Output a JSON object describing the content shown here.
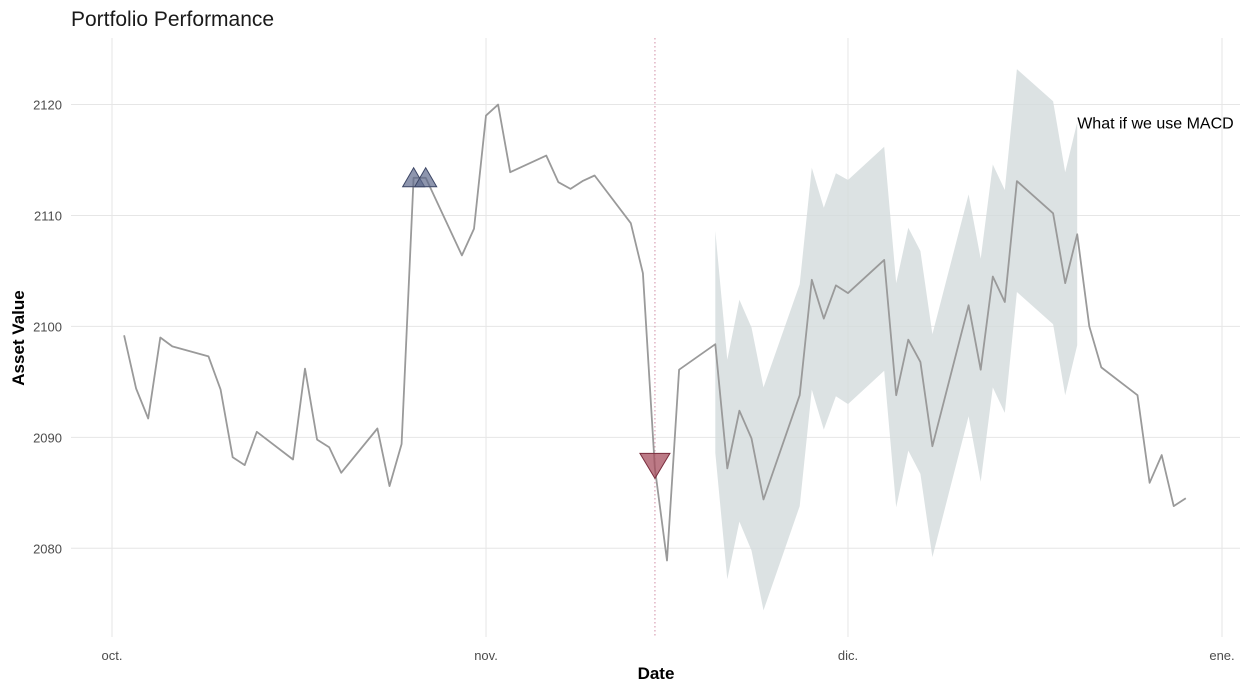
{
  "chart_data": {
    "type": "line",
    "title": "Portfolio Performance",
    "xlabel": "Date",
    "ylabel": "Asset Value",
    "ylim": [
      2072,
      2126
    ],
    "xlim": [
      "2023-10-01",
      "2024-01-01"
    ],
    "x_ticks": [
      {
        "date": "2023-10-01",
        "label": "oct."
      },
      {
        "date": "2023-11-01",
        "label": "nov."
      },
      {
        "date": "2023-12-01",
        "label": "dic."
      },
      {
        "date": "2024-01-01",
        "label": "ene."
      }
    ],
    "y_ticks": [
      2080,
      2090,
      2100,
      2110,
      2120
    ],
    "grid": true,
    "legend": "none",
    "colors": {
      "line": "#9a9a9a",
      "band": "#d3dbdc",
      "buy_marker": "#5e6a8c",
      "sell_marker": "#a54d5e",
      "vline": "#d9a0b4"
    },
    "series": [
      {
        "x": [
          "2023-10-02",
          "2023-10-03",
          "2023-10-04",
          "2023-10-05",
          "2023-10-06",
          "2023-10-09",
          "2023-10-10",
          "2023-10-11",
          "2023-10-12",
          "2023-10-13",
          "2023-10-16",
          "2023-10-17",
          "2023-10-18",
          "2023-10-19",
          "2023-10-20",
          "2023-10-23",
          "2023-10-24",
          "2023-10-25",
          "2023-10-26",
          "2023-10-27",
          "2023-10-30",
          "2023-10-31",
          "2023-11-01",
          "2023-11-02",
          "2023-11-03",
          "2023-11-06",
          "2023-11-07",
          "2023-11-08",
          "2023-11-09",
          "2023-11-10",
          "2023-11-13",
          "2023-11-14",
          "2023-11-15",
          "2023-11-16",
          "2023-11-17",
          "2023-11-20",
          "2023-11-21",
          "2023-11-22",
          "2023-11-23",
          "2023-11-24",
          "2023-11-27",
          "2023-11-28",
          "2023-11-29",
          "2023-11-30",
          "2023-12-01",
          "2023-12-04",
          "2023-12-05",
          "2023-12-06",
          "2023-12-07",
          "2023-12-08",
          "2023-12-11",
          "2023-12-12",
          "2023-12-13",
          "2023-12-14",
          "2023-12-15",
          "2023-12-18",
          "2023-12-19",
          "2023-12-20",
          "2023-12-21",
          "2023-12-22",
          "2023-12-25",
          "2023-12-26",
          "2023-12-27",
          "2023-12-28",
          "2023-12-29"
        ],
        "y": [
          2099.2,
          2094.4,
          2091.7,
          2099.0,
          2098.2,
          2097.3,
          2094.3,
          2088.2,
          2087.5,
          2090.5,
          2088.0,
          2096.2,
          2089.8,
          2089.1,
          2086.8,
          2090.8,
          2085.6,
          2089.4,
          2113.4,
          2113.4,
          2106.4,
          2108.8,
          2119.0,
          2120.0,
          2113.9,
          2115.4,
          2113.0,
          2112.4,
          2113.1,
          2113.6,
          2109.3,
          2104.8,
          2087.2,
          2078.9,
          2096.1,
          2098.4,
          2087.2,
          2092.4,
          2089.9,
          2084.4,
          2093.8,
          2104.2,
          2100.7,
          2103.7,
          2103.0,
          2106.0,
          2093.8,
          2098.8,
          2096.8,
          2089.2,
          2101.9,
          2096.1,
          2104.5,
          2102.2,
          2113.1,
          2110.2,
          2103.9,
          2108.3,
          2100.0,
          2096.3,
          2093.8,
          2085.9,
          2088.4,
          2083.8,
          2084.5
        ]
      }
    ],
    "band": {
      "x": [
        "2023-11-20",
        "2023-11-21",
        "2023-11-22",
        "2023-11-23",
        "2023-11-24",
        "2023-11-27",
        "2023-11-28",
        "2023-11-29",
        "2023-11-30",
        "2023-12-01",
        "2023-12-04",
        "2023-12-05",
        "2023-12-06",
        "2023-12-07",
        "2023-12-08",
        "2023-12-11",
        "2023-12-12",
        "2023-12-13",
        "2023-12-14",
        "2023-12-15",
        "2023-12-18",
        "2023-12-19",
        "2023-12-20"
      ],
      "upper": [
        2108.6,
        2097.0,
        2102.4,
        2099.9,
        2094.5,
        2103.8,
        2114.3,
        2110.7,
        2113.8,
        2113.2,
        2116.2,
        2103.9,
        2108.9,
        2106.8,
        2099.3,
        2111.9,
        2106.1,
        2114.6,
        2112.3,
        2123.2,
        2120.3,
        2113.9,
        2118.4
      ],
      "lower": [
        2088.6,
        2077.2,
        2082.4,
        2079.8,
        2074.4,
        2083.8,
        2094.3,
        2090.7,
        2093.7,
        2093.0,
        2096.0,
        2083.7,
        2088.8,
        2086.7,
        2079.2,
        2091.9,
        2086.0,
        2094.5,
        2092.2,
        2103.1,
        2100.2,
        2093.8,
        2098.3
      ]
    },
    "markers": [
      {
        "type": "buy",
        "shape": "triangle-up",
        "x": "2023-10-26",
        "y": 2113.4
      },
      {
        "type": "buy",
        "shape": "triangle-up",
        "x": "2023-10-27",
        "y": 2113.4
      },
      {
        "type": "sell",
        "shape": "triangle-down",
        "x": "2023-11-15",
        "y": 2087.2
      }
    ],
    "vline": {
      "x": "2023-11-15",
      "style": "dotted"
    },
    "annotations": [
      {
        "text": "What if we use MACD",
        "x": "2023-12-20",
        "y": 2118.3
      }
    ]
  }
}
